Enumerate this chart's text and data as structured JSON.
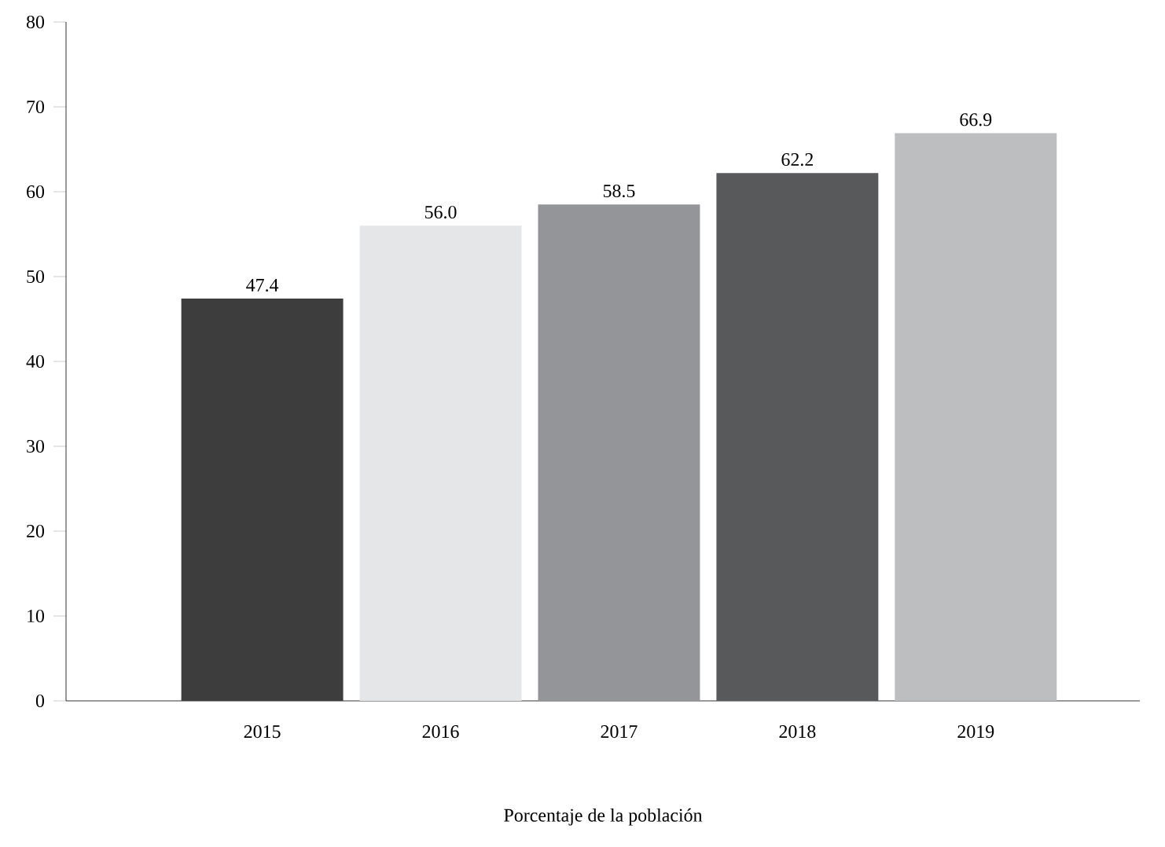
{
  "chart_data": {
    "type": "bar",
    "xlabel": "Porcentaje de la población",
    "categories": [
      "2015",
      "2016",
      "2017",
      "2018",
      "2019"
    ],
    "values": [
      47.4,
      56.0,
      58.5,
      62.2,
      66.9
    ],
    "value_labels": [
      "47.4",
      "56.0",
      "58.5",
      "62.2",
      "66.9"
    ],
    "colors": [
      "#3d3d3d",
      "#e5e6e8",
      "#939598",
      "#58595b",
      "#bcbec0"
    ],
    "ylim": [
      0,
      80
    ],
    "yticks": [
      0,
      10,
      20,
      30,
      40,
      50,
      60,
      70,
      80
    ]
  }
}
